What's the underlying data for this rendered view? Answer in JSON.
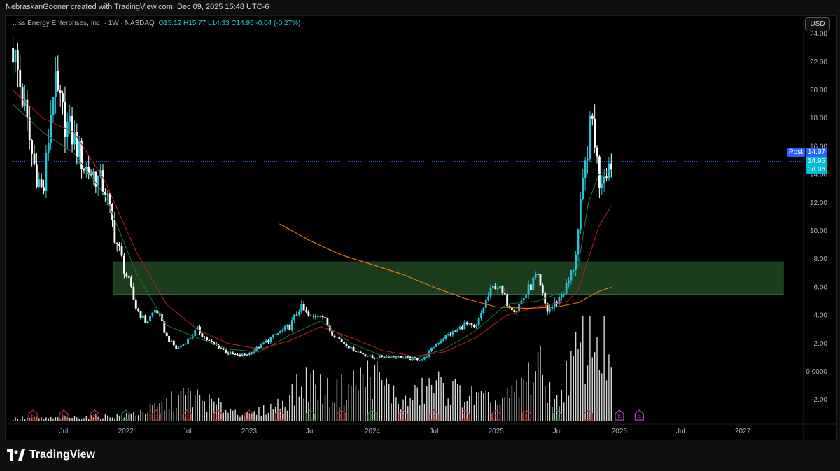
{
  "header": {
    "attribution": "NebraskanGooner created with TradingView.com, Dec 09, 2025 15:48 UTC-6"
  },
  "legend": {
    "symbol": "...ss Energy Enterprises, Inc. · 1W · NASDAQ",
    "ohlc": "O15.12  H15.77  L14.33  C14.95  -0.04 (-0.27%)"
  },
  "currency": "USD",
  "price_badges": {
    "post_label": "Post",
    "post_value": "14.97",
    "last_value": "14.95",
    "countdown": "3d 0h"
  },
  "branding": {
    "logo_text": "TradingView"
  },
  "colors": {
    "up": "#26c6da",
    "down": "#ffffff",
    "zone_fill": "#1b3d1e",
    "zone_border": "#2e6b33",
    "ma_short": "#1f6e3a",
    "ma_mid": "#b71c1c",
    "ma_long": "#f57c00",
    "volume": "#ffffff",
    "earnings_red": "#c62828",
    "earnings_green": "#2e7d32",
    "earnings_future": "#ab47bc"
  },
  "chart_data": {
    "type": "candlestick",
    "timeframe": "1W",
    "y_scale": "linear",
    "ylim": [
      -3.6,
      25.4
    ],
    "y_ticks": [
      "24.00",
      "22.00",
      "20.00",
      "18.00",
      "16.00",
      "14.00",
      "12.00",
      "10.00",
      "8.00",
      "6.00",
      "4.00",
      "2.00",
      "0.0000",
      "-2.00"
    ],
    "x_ticks": [
      "Jul",
      "2022",
      "Jul",
      "2023",
      "Jul",
      "2024",
      "Jul",
      "2025",
      "Jul",
      "2026",
      "Jul",
      "2027"
    ],
    "x_tick_dates": [
      "2021-07",
      "2022-01",
      "2022-07",
      "2023-01",
      "2023-07",
      "2024-01",
      "2024-07",
      "2025-01",
      "2025-07",
      "2026-01",
      "2026-07",
      "2027-01"
    ],
    "price_path": [
      [
        "2021-02",
        23.0
      ],
      [
        "2021-03",
        19.5
      ],
      [
        "2021-04",
        15.0
      ],
      [
        "2021-05",
        12.5
      ],
      [
        "2021-06",
        20.5
      ],
      [
        "2021-07",
        18.0
      ],
      [
        "2021-08",
        16.5
      ],
      [
        "2021-09",
        14.5
      ],
      [
        "2021-10",
        14.0
      ],
      [
        "2021-11",
        13.0
      ],
      [
        "2021-12",
        9.5
      ],
      [
        "2022-01",
        7.0
      ],
      [
        "2022-02",
        4.5
      ],
      [
        "2022-03",
        3.5
      ],
      [
        "2022-04",
        4.5
      ],
      [
        "2022-05",
        2.5
      ],
      [
        "2022-06",
        1.6
      ],
      [
        "2022-07",
        2.2
      ],
      [
        "2022-08",
        3.0
      ],
      [
        "2022-09",
        2.2
      ],
      [
        "2022-10",
        1.8
      ],
      [
        "2022-11",
        1.3
      ],
      [
        "2022-12",
        1.1
      ],
      [
        "2023-01",
        1.3
      ],
      [
        "2023-02",
        1.8
      ],
      [
        "2023-03",
        2.3
      ],
      [
        "2023-04",
        2.8
      ],
      [
        "2023-05",
        3.2
      ],
      [
        "2023-06",
        4.6
      ],
      [
        "2023-07",
        3.8
      ],
      [
        "2023-08",
        4.2
      ],
      [
        "2023-09",
        2.8
      ],
      [
        "2023-10",
        2.2
      ],
      [
        "2023-11",
        1.6
      ],
      [
        "2023-12",
        1.3
      ],
      [
        "2024-01",
        1.0
      ],
      [
        "2024-02",
        1.1
      ],
      [
        "2024-03",
        1.1
      ],
      [
        "2024-04",
        1.0
      ],
      [
        "2024-05",
        0.9
      ],
      [
        "2024-06",
        0.9
      ],
      [
        "2024-07",
        1.8
      ],
      [
        "2024-08",
        2.5
      ],
      [
        "2024-09",
        2.8
      ],
      [
        "2024-10",
        3.4
      ],
      [
        "2024-11",
        3.0
      ],
      [
        "2024-12",
        5.0
      ],
      [
        "2025-01",
        6.3
      ],
      [
        "2025-02",
        5.0
      ],
      [
        "2025-03",
        4.4
      ],
      [
        "2025-04",
        5.6
      ],
      [
        "2025-05",
        6.8
      ],
      [
        "2025-06",
        4.3
      ],
      [
        "2025-07",
        5.0
      ],
      [
        "2025-08",
        6.2
      ],
      [
        "2025-08-20",
        7.6
      ],
      [
        "2025-09",
        10.0
      ],
      [
        "2025-09-15",
        13.0
      ],
      [
        "2025-10",
        16.5
      ],
      [
        "2025-10-15",
        18.0
      ],
      [
        "2025-11",
        13.5
      ],
      [
        "2025-11-20",
        14.5
      ],
      [
        "2025-12-08",
        14.95
      ]
    ],
    "zone": {
      "y_range": [
        5.5,
        7.8
      ],
      "x_range": [
        "2021-12",
        "2027-02"
      ]
    },
    "moving_averages": [
      {
        "path": [
          [
            "2021-02",
            19.0
          ],
          [
            "2021-05",
            17.0
          ],
          [
            "2021-08",
            15.5
          ],
          [
            "2021-11",
            12.5
          ],
          [
            "2022-02",
            7.0
          ],
          [
            "2022-05",
            3.3
          ],
          [
            "2022-08",
            2.4
          ],
          [
            "2022-11",
            1.6
          ],
          [
            "2023-02",
            1.4
          ],
          [
            "2023-05",
            2.6
          ],
          [
            "2023-08",
            3.6
          ],
          [
            "2023-11",
            2.0
          ],
          [
            "2024-02",
            1.1
          ],
          [
            "2024-05",
            0.9
          ],
          [
            "2024-08",
            1.6
          ],
          [
            "2024-11",
            2.9
          ],
          [
            "2025-02",
            4.8
          ],
          [
            "2025-05",
            5.0
          ],
          [
            "2025-08",
            5.8
          ],
          [
            "2025-09",
            7.5
          ],
          [
            "2025-10",
            12.0
          ],
          [
            "2025-11",
            14.0
          ],
          [
            "2025-12-08",
            14.3
          ]
        ]
      },
      {
        "path": [
          [
            "2021-02",
            20.0
          ],
          [
            "2021-05",
            18.0
          ],
          [
            "2021-08",
            17.0
          ],
          [
            "2021-11",
            13.5
          ],
          [
            "2022-02",
            8.5
          ],
          [
            "2022-05",
            4.8
          ],
          [
            "2022-08",
            3.0
          ],
          [
            "2022-11",
            2.0
          ],
          [
            "2023-02",
            1.6
          ],
          [
            "2023-05",
            2.2
          ],
          [
            "2023-08",
            3.2
          ],
          [
            "2023-11",
            2.4
          ],
          [
            "2024-02",
            1.5
          ],
          [
            "2024-05",
            1.1
          ],
          [
            "2024-08",
            1.4
          ],
          [
            "2024-11",
            2.4
          ],
          [
            "2025-02",
            4.0
          ],
          [
            "2025-05",
            4.6
          ],
          [
            "2025-08",
            5.0
          ],
          [
            "2025-09",
            5.8
          ],
          [
            "2025-10",
            8.0
          ],
          [
            "2025-11",
            10.3
          ],
          [
            "2025-12-08",
            11.8
          ]
        ]
      },
      {
        "path": [
          [
            "2023-04",
            10.5
          ],
          [
            "2023-07",
            9.3
          ],
          [
            "2023-10",
            8.3
          ],
          [
            "2024-01",
            7.6
          ],
          [
            "2024-04",
            6.9
          ],
          [
            "2024-07",
            6.0
          ],
          [
            "2024-10",
            5.2
          ],
          [
            "2025-01",
            4.6
          ],
          [
            "2025-04",
            4.5
          ],
          [
            "2025-07",
            4.6
          ],
          [
            "2025-09",
            4.9
          ],
          [
            "2025-10",
            5.3
          ],
          [
            "2025-11",
            5.7
          ],
          [
            "2025-12-08",
            6.0
          ]
        ]
      }
    ],
    "volume_profile": [
      [
        "2021-02",
        0.03
      ],
      [
        "2021-06",
        0.03
      ],
      [
        "2022-01",
        0.06
      ],
      [
        "2022-04",
        0.15
      ],
      [
        "2022-07",
        0.3
      ],
      [
        "2022-10",
        0.18
      ],
      [
        "2023-01",
        0.06
      ],
      [
        "2023-04",
        0.2
      ],
      [
        "2023-07",
        0.48
      ],
      [
        "2023-09",
        0.3
      ],
      [
        "2024-01",
        0.55
      ],
      [
        "2024-04",
        0.2
      ],
      [
        "2024-07",
        0.42
      ],
      [
        "2024-10",
        0.3
      ],
      [
        "2025-01",
        0.2
      ],
      [
        "2025-03",
        0.32
      ],
      [
        "2025-05",
        0.65
      ],
      [
        "2025-07",
        0.2
      ],
      [
        "2025-08",
        0.55
      ],
      [
        "2025-10",
        0.95
      ],
      [
        "2025-11",
        1.0
      ],
      [
        "2025-12-08",
        0.6
      ]
    ],
    "earnings_markers": [
      {
        "date": "2021-04",
        "kind": "red"
      },
      {
        "date": "2021-07",
        "kind": "red"
      },
      {
        "date": "2021-10",
        "kind": "red"
      },
      {
        "date": "2022-01",
        "kind": "green"
      },
      {
        "date": "2022-04",
        "kind": "red"
      },
      {
        "date": "2022-07",
        "kind": "red"
      },
      {
        "date": "2022-10",
        "kind": "red"
      },
      {
        "date": "2023-01",
        "kind": "red"
      },
      {
        "date": "2023-04",
        "kind": "red"
      },
      {
        "date": "2023-07",
        "kind": "green"
      },
      {
        "date": "2023-10",
        "kind": "red"
      },
      {
        "date": "2024-01",
        "kind": "green"
      },
      {
        "date": "2024-04",
        "kind": "red"
      },
      {
        "date": "2024-07",
        "kind": "red"
      },
      {
        "date": "2024-10",
        "kind": "red"
      },
      {
        "date": "2025-01",
        "kind": "red"
      },
      {
        "date": "2025-04",
        "kind": "red"
      },
      {
        "date": "2025-07",
        "kind": "green"
      },
      {
        "date": "2025-10",
        "kind": "red"
      },
      {
        "date": "2026-01",
        "kind": "future"
      },
      {
        "date": "2026-03",
        "kind": "future"
      }
    ],
    "last_price": 14.95,
    "post_price": 14.97
  }
}
